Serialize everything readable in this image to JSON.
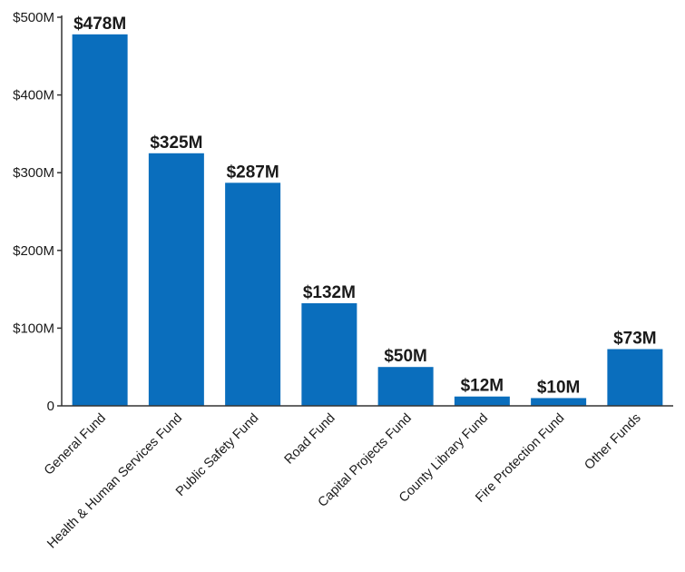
{
  "chart_data": {
    "type": "bar",
    "title": "",
    "xlabel": "",
    "ylabel": "",
    "ylim": [
      0,
      500
    ],
    "yticks": [
      0,
      100,
      200,
      300,
      400,
      500
    ],
    "ytick_labels": [
      "0",
      "$100M",
      "$200M",
      "$300M",
      "$400M",
      "$500M"
    ],
    "categories": [
      "General Fund",
      "Health & Human Services Fund",
      "Public Safety Fund",
      "Road Fund",
      "Capital Projects Fund",
      "County Library Fund",
      "Fire Protection Fund",
      "Other Funds"
    ],
    "values": [
      478,
      325,
      287,
      132,
      50,
      12,
      10,
      73
    ],
    "value_labels": [
      "$478M",
      "$325M",
      "$287M",
      "$132M",
      "$50M",
      "$12M",
      "$10M",
      "$73M"
    ],
    "bar_color": "#0a6ebd",
    "grid": false,
    "legend": "none"
  }
}
